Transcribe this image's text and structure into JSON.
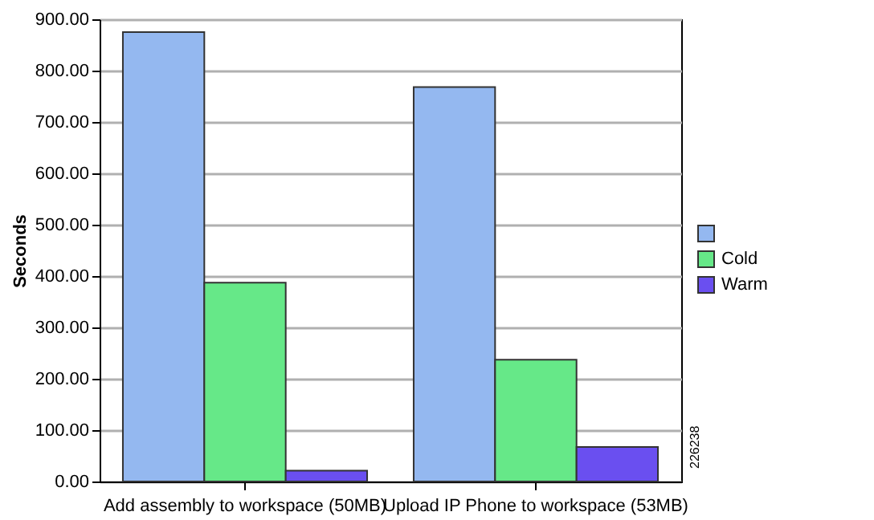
{
  "chart_data": {
    "type": "bar",
    "ylabel": "Seconds",
    "categories": [
      "Add assembly to workspace (50MB)",
      "Upload IP Phone to workspace (53MB)"
    ],
    "series": [
      {
        "name": null,
        "color": "#94b8f0",
        "values": [
          875,
          768
        ]
      },
      {
        "name": "Cold",
        "color": "#66e888",
        "values": [
          387,
          237
        ]
      },
      {
        "name": "Warm",
        "color": "#6a4ff0",
        "values": [
          21,
          67
        ]
      }
    ],
    "ylim": [
      0,
      900
    ],
    "yticks": [
      {
        "value": 0,
        "label": "0.00"
      },
      {
        "value": 100,
        "label": "100.00"
      },
      {
        "value": 200,
        "label": "200.00"
      },
      {
        "value": 300,
        "label": "300.00"
      },
      {
        "value": 400,
        "label": "400.00"
      },
      {
        "value": 500,
        "label": "500.00"
      },
      {
        "value": 600,
        "label": "600.00"
      },
      {
        "value": 700,
        "label": "700.00"
      },
      {
        "value": 800,
        "label": "800.00"
      },
      {
        "value": 900,
        "label": "900.00"
      }
    ],
    "grid": "y",
    "legend": "right",
    "annotations": [
      "226238"
    ]
  }
}
